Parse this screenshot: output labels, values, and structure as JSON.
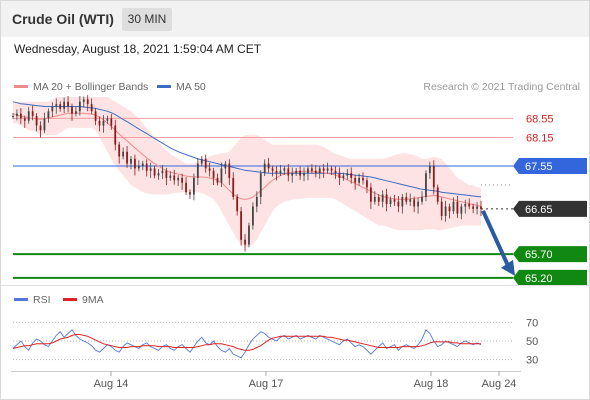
{
  "header": {
    "title": "Crude Oil (WTI)",
    "timeframe": "30 MIN",
    "datetime": "Wednesday, August 18, 2021 1:59:04 AM CET"
  },
  "legend": {
    "ma20_label": "MA 20 + Bollinger Bands",
    "ma50_label": "MA 50",
    "copyright": "Research © 2021 Trading Central"
  },
  "rsi_legend": {
    "rsi_label": "RSI",
    "ma9_label": "9MA"
  },
  "colors": {
    "ma20": "#f08a8a",
    "ma50": "#3c6cc6",
    "band": "#fde3e3",
    "resistance": "#f0a0a0",
    "pivot": "#3366dd",
    "support": "#118811",
    "current": "#333333",
    "arrow": "#2a5aa0",
    "candle_up": "#444444",
    "candle_down": "#8b1a1a",
    "rsi": "#5577dd",
    "rsi_ma": "#dd2222"
  },
  "chart_data": [
    {
      "type": "line",
      "name": "price",
      "ylim": [
        65.05,
        69.0
      ],
      "x_ticks": [
        "Aug 14",
        "Aug 17",
        "Aug 18",
        "Aug 24"
      ],
      "levels": [
        {
          "value": 68.55,
          "label": "68.55",
          "kind": "resistance"
        },
        {
          "value": 68.15,
          "label": "68.15",
          "kind": "resistance"
        },
        {
          "value": 67.55,
          "label": "67.55",
          "kind": "pivot"
        },
        {
          "value": 66.65,
          "label": "66.65",
          "kind": "current"
        },
        {
          "value": 65.7,
          "label": "65.70",
          "kind": "support"
        },
        {
          "value": 65.2,
          "label": "65.20",
          "kind": "support"
        }
      ],
      "close": [
        68.6,
        68.65,
        68.55,
        68.5,
        68.7,
        68.6,
        68.4,
        68.3,
        68.55,
        68.7,
        68.8,
        68.85,
        68.75,
        68.9,
        68.8,
        68.65,
        68.7,
        68.9,
        68.95,
        68.85,
        68.7,
        68.5,
        68.4,
        68.5,
        68.55,
        68.4,
        68.0,
        67.75,
        67.85,
        67.6,
        67.7,
        67.5,
        67.55,
        67.6,
        67.45,
        67.5,
        67.35,
        67.4,
        67.45,
        67.3,
        67.35,
        67.25,
        67.3,
        67.2,
        67.0,
        66.95,
        67.3,
        67.6,
        67.7,
        67.5,
        67.45,
        67.3,
        67.2,
        67.5,
        67.6,
        67.3,
        66.9,
        66.6,
        66.0,
        65.9,
        66.3,
        66.7,
        66.9,
        67.4,
        67.6,
        67.5,
        67.45,
        67.4,
        67.45,
        67.5,
        67.35,
        67.4,
        67.45,
        67.35,
        67.4,
        67.5,
        67.45,
        67.4,
        67.5,
        67.45,
        67.5,
        67.45,
        67.4,
        67.3,
        67.35,
        67.4,
        67.3,
        67.2,
        67.3,
        67.25,
        67.1,
        66.8,
        66.9,
        66.8,
        66.95,
        66.75,
        66.85,
        66.8,
        66.7,
        66.9,
        66.8,
        66.85,
        66.7,
        66.8,
        66.9,
        67.4,
        67.55,
        67.1,
        66.8,
        66.5,
        66.7,
        66.6,
        66.8,
        66.55,
        66.7,
        66.75,
        66.7,
        66.65,
        66.7,
        66.65
      ],
      "ma20": [
        68.65,
        68.62,
        68.6,
        68.58,
        68.56,
        68.55,
        68.54,
        68.53,
        68.54,
        68.56,
        68.58,
        68.6,
        68.62,
        68.64,
        68.66,
        68.66,
        68.66,
        68.66,
        68.66,
        68.65,
        68.64,
        68.62,
        68.58,
        68.52,
        68.45,
        68.38,
        68.3,
        68.22,
        68.15,
        68.08,
        68.0,
        67.93,
        67.86,
        67.79,
        67.72,
        67.66,
        67.6,
        67.55,
        67.5,
        67.45,
        67.42,
        67.4,
        67.38,
        67.36,
        67.34,
        67.33,
        67.32,
        67.32,
        67.32,
        67.31,
        67.3,
        67.28,
        67.25,
        67.2,
        67.12,
        67.04,
        66.96,
        66.9,
        66.86,
        66.85,
        66.86,
        66.9,
        66.96,
        67.03,
        67.1,
        67.18,
        67.25,
        67.3,
        67.35,
        67.38,
        67.4,
        67.42,
        67.43,
        67.44,
        67.44,
        67.44,
        67.44,
        67.43,
        67.42,
        67.41,
        67.4,
        67.38,
        67.36,
        67.33,
        67.3,
        67.26,
        67.22,
        67.18,
        67.14,
        67.1,
        67.06,
        67.02,
        66.98,
        66.94,
        66.91,
        66.89,
        66.87,
        66.86,
        66.85,
        66.85,
        66.85,
        66.86,
        66.87,
        66.88,
        66.9,
        66.91,
        66.92,
        66.93,
        66.92,
        66.9,
        66.88,
        66.86,
        66.84,
        66.82,
        66.8,
        66.78,
        66.76,
        66.74,
        66.72,
        66.7
      ],
      "band_upper": [
        68.9,
        68.9,
        68.9,
        68.9,
        68.9,
        68.9,
        68.9,
        68.9,
        68.9,
        68.9,
        68.95,
        69.0,
        69.0,
        69.0,
        69.0,
        69.0,
        69.0,
        69.0,
        69.0,
        69.0,
        69.0,
        69.0,
        69.0,
        69.0,
        69.0,
        68.95,
        68.9,
        68.85,
        68.8,
        68.75,
        68.7,
        68.62,
        68.55,
        68.45,
        68.35,
        68.25,
        68.15,
        68.05,
        67.95,
        67.88,
        67.8,
        67.75,
        67.7,
        67.65,
        67.6,
        67.6,
        67.6,
        67.65,
        67.7,
        67.72,
        67.75,
        67.78,
        67.8,
        67.82,
        67.82,
        67.85,
        67.95,
        68.05,
        68.15,
        68.2,
        68.2,
        68.2,
        68.2,
        68.15,
        68.1,
        68.05,
        68.0,
        68.0,
        68.0,
        68.0,
        68.0,
        68.0,
        68.0,
        68.0,
        68.0,
        68.0,
        68.0,
        68.0,
        67.98,
        67.95,
        67.9,
        67.85,
        67.8,
        67.78,
        67.75,
        67.72,
        67.7,
        67.7,
        67.7,
        67.7,
        67.7,
        67.7,
        67.7,
        67.7,
        67.7,
        67.72,
        67.75,
        67.78,
        67.8,
        67.82,
        67.82,
        67.8,
        67.78,
        67.75,
        67.7,
        67.7,
        67.72,
        67.75,
        67.72,
        67.7,
        67.6,
        67.5,
        67.4,
        67.3,
        67.25,
        67.2,
        67.15,
        67.15,
        67.1,
        67.1
      ],
      "band_lower": [
        68.45,
        68.45,
        68.4,
        68.35,
        68.3,
        68.3,
        68.25,
        68.2,
        68.2,
        68.2,
        68.2,
        68.2,
        68.25,
        68.3,
        68.35,
        68.35,
        68.35,
        68.35,
        68.35,
        68.35,
        68.35,
        68.3,
        68.15,
        68.0,
        67.85,
        67.7,
        67.55,
        67.45,
        67.35,
        67.25,
        67.15,
        67.1,
        67.05,
        67.0,
        66.98,
        66.96,
        66.95,
        66.95,
        66.95,
        66.95,
        66.97,
        66.98,
        66.99,
        67.0,
        67.0,
        67.0,
        67.0,
        67.0,
        66.98,
        66.95,
        66.9,
        66.85,
        66.75,
        66.6,
        66.45,
        66.3,
        66.15,
        66.0,
        65.9,
        65.85,
        65.85,
        65.9,
        66.0,
        66.15,
        66.3,
        66.45,
        66.6,
        66.7,
        66.75,
        66.8,
        66.82,
        66.84,
        66.85,
        66.86,
        66.87,
        66.88,
        66.88,
        66.88,
        66.88,
        66.88,
        66.88,
        66.88,
        66.85,
        66.8,
        66.75,
        66.7,
        66.65,
        66.6,
        66.55,
        66.5,
        66.45,
        66.4,
        66.35,
        66.3,
        66.3,
        66.28,
        66.25,
        66.22,
        66.2,
        66.2,
        66.2,
        66.2,
        66.2,
        66.2,
        66.2,
        66.22,
        66.22,
        66.22,
        66.2,
        66.2,
        66.22,
        66.24,
        66.26,
        66.28,
        66.3,
        66.3,
        66.3,
        66.3,
        66.3,
        66.3
      ],
      "ma50": [
        68.9,
        68.88,
        68.86,
        68.85,
        68.84,
        68.83,
        68.82,
        68.81,
        68.8,
        68.8,
        68.8,
        68.8,
        68.8,
        68.8,
        68.8,
        68.8,
        68.8,
        68.8,
        68.79,
        68.78,
        68.77,
        68.76,
        68.74,
        68.72,
        68.7,
        68.67,
        68.63,
        68.58,
        68.53,
        68.48,
        68.43,
        68.38,
        68.33,
        68.28,
        68.23,
        68.18,
        68.13,
        68.08,
        68.03,
        67.98,
        67.93,
        67.89,
        67.85,
        67.82,
        67.79,
        67.76,
        67.73,
        67.7,
        67.68,
        67.66,
        67.64,
        67.62,
        67.6,
        67.58,
        67.56,
        67.54,
        67.52,
        67.5,
        67.48,
        67.46,
        67.45,
        67.44,
        67.43,
        67.42,
        67.41,
        67.4,
        67.4,
        67.4,
        67.4,
        67.4,
        67.4,
        67.4,
        67.4,
        67.4,
        67.4,
        67.4,
        67.4,
        67.4,
        67.4,
        67.4,
        67.4,
        67.4,
        67.4,
        67.4,
        67.39,
        67.38,
        67.37,
        67.36,
        67.35,
        67.34,
        67.33,
        67.32,
        67.3,
        67.28,
        67.26,
        67.24,
        67.22,
        67.2,
        67.18,
        67.16,
        67.14,
        67.12,
        67.1,
        67.08,
        67.06,
        67.05,
        67.04,
        67.03,
        67.02,
        67.0,
        66.99,
        66.98,
        66.97,
        66.96,
        66.95,
        66.94,
        66.93,
        66.92,
        66.91,
        66.9
      ]
    },
    {
      "type": "line",
      "name": "rsi",
      "ylim": [
        20,
        80
      ],
      "y_ticks": [
        70,
        50,
        30
      ],
      "rsi": [
        42,
        46,
        50,
        44,
        40,
        48,
        52,
        50,
        46,
        44,
        50,
        56,
        60,
        54,
        58,
        62,
        56,
        52,
        50,
        48,
        45,
        40,
        38,
        42,
        46,
        44,
        40,
        38,
        44,
        48,
        46,
        44,
        42,
        46,
        48,
        44,
        42,
        40,
        44,
        46,
        42,
        40,
        44,
        46,
        42,
        38,
        44,
        50,
        54,
        48,
        46,
        50,
        44,
        40,
        38,
        42,
        36,
        34,
        32,
        38,
        46,
        52,
        56,
        60,
        58,
        54,
        52,
        50,
        54,
        56,
        52,
        54,
        56,
        52,
        54,
        56,
        54,
        52,
        56,
        54,
        52,
        50,
        48,
        46,
        50,
        52,
        48,
        44,
        46,
        44,
        40,
        36,
        40,
        44,
        48,
        42,
        44,
        46,
        40,
        44,
        46,
        44,
        42,
        46,
        52,
        62,
        58,
        50,
        44,
        46,
        50,
        48,
        46,
        44,
        48,
        50,
        48,
        46,
        48,
        46
      ],
      "ma9": [
        42,
        43,
        44,
        45,
        45,
        46,
        47,
        47,
        47,
        47,
        48,
        50,
        52,
        53,
        54,
        56,
        57,
        57,
        56,
        55,
        53,
        51,
        49,
        47,
        46,
        45,
        44,
        43,
        43,
        43,
        44,
        44,
        44,
        45,
        45,
        45,
        45,
        44,
        44,
        44,
        44,
        43,
        43,
        43,
        43,
        43,
        43,
        44,
        45,
        46,
        46,
        47,
        47,
        47,
        46,
        45,
        44,
        42,
        41,
        40,
        40,
        41,
        43,
        45,
        48,
        51,
        53,
        54,
        55,
        55,
        55,
        55,
        55,
        55,
        55,
        55,
        55,
        55,
        55,
        55,
        54,
        54,
        53,
        52,
        51,
        51,
        50,
        49,
        48,
        47,
        46,
        45,
        44,
        43,
        43,
        43,
        43,
        43,
        43,
        44,
        44,
        44,
        44,
        44,
        45,
        46,
        48,
        49,
        49,
        49,
        49,
        49,
        48,
        48,
        47,
        47,
        47,
        47,
        47,
        47
      ]
    }
  ]
}
